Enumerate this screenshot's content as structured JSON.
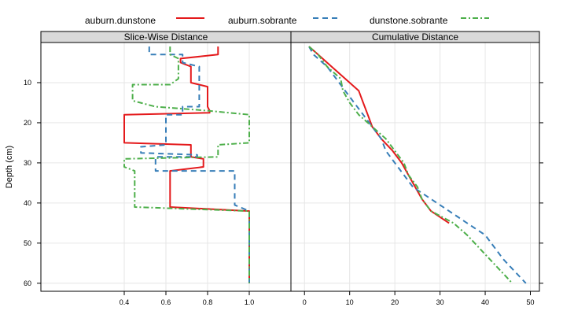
{
  "chart_data": {
    "type": "line",
    "ylabel": "Depth (cm)",
    "ylim": [
      62,
      0
    ],
    "yticks": [
      10,
      20,
      30,
      40,
      50,
      60
    ],
    "legend_position": "top",
    "legend": [
      {
        "name": "auburn.dunstone",
        "color": "#e41a1c",
        "dash": "solid"
      },
      {
        "name": "auburn.sobrante",
        "color": "#377eb8",
        "dash": "dashed"
      },
      {
        "name": "dunstone.sobrante",
        "color": "#4daf4a",
        "dash": "dotdash"
      }
    ],
    "panels": [
      {
        "title": "Slice-Wise Distance",
        "xlim": [
          0.0,
          1.2
        ],
        "xticks": [
          0.4,
          0.6,
          0.8,
          1.0
        ],
        "series": [
          {
            "name": "auburn.dunstone",
            "points": [
              [
                0.85,
                1
              ],
              [
                0.85,
                3
              ],
              [
                0.67,
                4
              ],
              [
                0.67,
                5
              ],
              [
                0.72,
                6
              ],
              [
                0.72,
                10
              ],
              [
                0.8,
                11
              ],
              [
                0.8,
                16
              ],
              [
                0.81,
                17
              ],
              [
                0.81,
                17.5
              ],
              [
                0.4,
                18
              ],
              [
                0.4,
                25
              ],
              [
                0.72,
                25.5
              ],
              [
                0.72,
                28.5
              ],
              [
                0.78,
                29
              ],
              [
                0.78,
                31
              ],
              [
                0.62,
                32
              ],
              [
                0.62,
                41
              ],
              [
                1.0,
                42
              ],
              [
                1.0,
                60
              ]
            ]
          },
          {
            "name": "auburn.sobrante",
            "points": [
              [
                0.52,
                1
              ],
              [
                0.52,
                3
              ],
              [
                0.68,
                3
              ],
              [
                0.68,
                5
              ],
              [
                0.76,
                6
              ],
              [
                0.76,
                16
              ],
              [
                0.68,
                16
              ],
              [
                0.68,
                18
              ],
              [
                0.6,
                18
              ],
              [
                0.6,
                25.5
              ],
              [
                0.48,
                26
              ],
              [
                0.48,
                27.5
              ],
              [
                0.75,
                28
              ],
              [
                0.75,
                28.5
              ],
              [
                0.55,
                28.5
              ],
              [
                0.55,
                32
              ],
              [
                0.93,
                32
              ],
              [
                0.93,
                40.5
              ],
              [
                1.0,
                42
              ],
              [
                1.0,
                60
              ]
            ]
          },
          {
            "name": "dunstone.sobrante",
            "points": [
              [
                0.62,
                1
              ],
              [
                0.62,
                3
              ],
              [
                0.66,
                4
              ],
              [
                0.66,
                9
              ],
              [
                0.62,
                10.5
              ],
              [
                0.44,
                10.5
              ],
              [
                0.44,
                14.5
              ],
              [
                0.55,
                16
              ],
              [
                0.8,
                17
              ],
              [
                1.0,
                18
              ],
              [
                1.0,
                25
              ],
              [
                0.85,
                25.5
              ],
              [
                0.85,
                28.5
              ],
              [
                0.4,
                29
              ],
              [
                0.4,
                31
              ],
              [
                0.45,
                32
              ],
              [
                0.45,
                41
              ],
              [
                1.0,
                42
              ],
              [
                1.0,
                60
              ]
            ]
          }
        ]
      },
      {
        "title": "Cumulative Distance",
        "xlim": [
          -3,
          52
        ],
        "xticks": [
          0,
          10,
          20,
          30,
          40,
          50
        ],
        "series": [
          {
            "name": "auburn.dunstone",
            "points": [
              [
                1,
                1
              ],
              [
                3,
                3
              ],
              [
                6,
                6
              ],
              [
                9,
                9
              ],
              [
                12,
                12
              ],
              [
                13,
                15
              ],
              [
                14,
                18
              ],
              [
                15,
                21
              ],
              [
                17,
                24
              ],
              [
                19.5,
                27
              ],
              [
                21.5,
                30
              ],
              [
                23,
                33
              ],
              [
                24.5,
                36
              ],
              [
                26,
                39
              ],
              [
                28,
                42
              ],
              [
                32,
                45
              ]
            ]
          },
          {
            "name": "auburn.sobrante",
            "points": [
              [
                1,
                1
              ],
              [
                2,
                3
              ],
              [
                5,
                6
              ],
              [
                7,
                9
              ],
              [
                9,
                12
              ],
              [
                11,
                15
              ],
              [
                13,
                18
              ],
              [
                15,
                21
              ],
              [
                17,
                24
              ],
              [
                18,
                27
              ],
              [
                20,
                30
              ],
              [
                22,
                33
              ],
              [
                24,
                36
              ],
              [
                28,
                39
              ],
              [
                32,
                42
              ],
              [
                36,
                45
              ],
              [
                40,
                48
              ],
              [
                44,
                54
              ],
              [
                49,
                60
              ]
            ]
          },
          {
            "name": "dunstone.sobrante",
            "points": [
              [
                1,
                1
              ],
              [
                3,
                3
              ],
              [
                5,
                6
              ],
              [
                8,
                9
              ],
              [
                8.5,
                12
              ],
              [
                10,
                15
              ],
              [
                12,
                18
              ],
              [
                15,
                21
              ],
              [
                18,
                24
              ],
              [
                20,
                27
              ],
              [
                22,
                30
              ],
              [
                23,
                33
              ],
              [
                25,
                36
              ],
              [
                26,
                39
              ],
              [
                28,
                42
              ],
              [
                33,
                45
              ],
              [
                36,
                48
              ],
              [
                41,
                54
              ],
              [
                46,
                60
              ]
            ]
          }
        ]
      }
    ]
  }
}
